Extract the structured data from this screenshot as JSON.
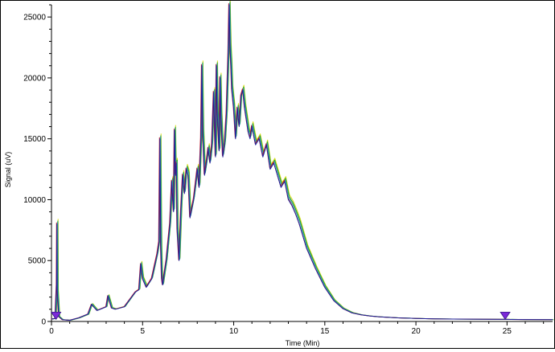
{
  "chart_data": {
    "type": "line",
    "xlabel": "Time (Min)",
    "ylabel": "Signal (uV)",
    "xlim": [
      0,
      27.5
    ],
    "ylim": [
      0,
      26000
    ],
    "x_ticks": [
      0,
      5,
      10,
      15,
      20,
      25
    ],
    "y_ticks": [
      0,
      5000,
      10000,
      15000,
      20000,
      25000
    ],
    "x_tick_labels": [
      "0",
      "5",
      "10",
      "15",
      "20",
      "25"
    ],
    "y_tick_labels": [
      "0",
      "5000",
      "10000",
      "15000",
      "20000",
      "25000"
    ],
    "grid": false,
    "markers": [
      {
        "x": 0.25,
        "y": 700,
        "color": "#7b28d8"
      },
      {
        "x": 24.9,
        "y": 700,
        "color": "#7b28d8"
      }
    ],
    "series": [
      {
        "color": "#1f1f9a",
        "y_offset": 0,
        "x_shift": 0
      },
      {
        "color": "#2aa8a8",
        "y_offset": 150,
        "x_shift": 0.03
      },
      {
        "color": "#d4de18",
        "y_offset": 400,
        "x_shift": 0.06
      },
      {
        "color": "#2a9a2a",
        "y_offset": 250,
        "x_shift": 0.05
      },
      {
        "color": "#c0182a",
        "y_offset": 100,
        "x_shift": -0.02
      }
    ],
    "x": [
      0,
      0.2,
      0.28,
      0.3,
      0.32,
      0.4,
      0.6,
      1,
      1.5,
      2,
      2.2,
      2.5,
      3,
      3.1,
      3.3,
      3.5,
      4,
      4.3,
      4.6,
      4.8,
      4.9,
      5.0,
      5.2,
      5.5,
      5.8,
      5.9,
      5.95,
      6.0,
      6.05,
      6.1,
      6.3,
      6.5,
      6.6,
      6.7,
      6.75,
      6.8,
      6.85,
      6.9,
      7.0,
      7.1,
      7.2,
      7.3,
      7.4,
      7.5,
      7.6,
      7.8,
      7.9,
      8.0,
      8.1,
      8.2,
      8.25,
      8.3,
      8.4,
      8.5,
      8.6,
      8.7,
      8.8,
      8.9,
      9.0,
      9.05,
      9.1,
      9.2,
      9.25,
      9.3,
      9.4,
      9.5,
      9.6,
      9.7,
      9.75,
      9.8,
      9.85,
      9.9,
      10.0,
      10.1,
      10.2,
      10.3,
      10.4,
      10.5,
      10.6,
      10.8,
      10.9,
      11.0,
      11.2,
      11.4,
      11.6,
      11.8,
      12.0,
      12.2,
      12.4,
      12.6,
      12.8,
      13.0,
      13.2,
      13.4,
      13.6,
      13.8,
      14.0,
      14.5,
      15.0,
      15.5,
      16.0,
      16.5,
      17.0,
      17.5,
      18.0,
      19.0,
      20.0,
      21.0,
      22.0,
      23.0,
      24.0,
      25.0,
      26.0,
      27.5
    ],
    "values": [
      200,
      250,
      3000,
      8000,
      2500,
      400,
      150,
      100,
      300,
      600,
      1400,
      900,
      1200,
      2100,
      1100,
      1000,
      1200,
      1800,
      2400,
      2600,
      4700,
      3500,
      2800,
      3500,
      5500,
      6500,
      15000,
      6000,
      3500,
      3000,
      5000,
      8000,
      11500,
      9000,
      15700,
      12000,
      13000,
      7500,
      5000,
      9000,
      12000,
      10500,
      12500,
      12000,
      8500,
      10000,
      11200,
      12500,
      11000,
      15000,
      21000,
      15500,
      12000,
      13000,
      14200,
      13000,
      14500,
      18800,
      13500,
      21000,
      17000,
      14000,
      20000,
      16800,
      13500,
      14600,
      17000,
      22000,
      26000,
      22500,
      21000,
      19000,
      17500,
      15000,
      17500,
      16000,
      18500,
      19000,
      17500,
      15500,
      15000,
      16000,
      14500,
      15000,
      13500,
      14500,
      12500,
      13000,
      12000,
      11000,
      11500,
      10000,
      9500,
      8800,
      8000,
      7000,
      6000,
      4300,
      2800,
      1700,
      1050,
      700,
      550,
      450,
      380,
      300,
      250,
      220,
      200,
      190,
      180,
      170,
      160,
      150
    ]
  }
}
